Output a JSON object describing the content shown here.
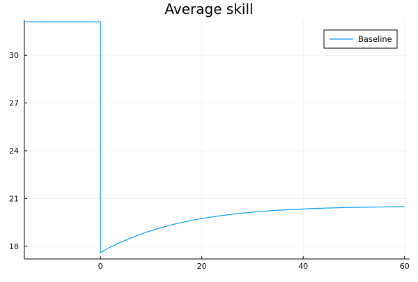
{
  "chart_data": {
    "type": "line",
    "title": "Average skill",
    "xlabel": "",
    "ylabel": "",
    "xlim": [
      -15,
      61
    ],
    "ylim": [
      17.2,
      32.2
    ],
    "x_ticks": [
      0,
      20,
      40,
      60
    ],
    "y_ticks": [
      18,
      21,
      24,
      27,
      30
    ],
    "x_tick_labels": [
      "0",
      "20",
      "40",
      "60"
    ],
    "y_tick_labels": [
      "18",
      "21",
      "24",
      "27",
      "30"
    ],
    "grid": true,
    "legend_position": "top-right",
    "series": [
      {
        "name": "Baseline",
        "color": "#009AFA",
        "points": [
          [
            -15,
            32.1
          ],
          [
            0,
            32.1
          ],
          [
            0,
            17.6
          ],
          [
            2,
            17.95
          ],
          [
            4,
            18.25
          ],
          [
            6,
            18.52
          ],
          [
            8,
            18.76
          ],
          [
            10,
            18.98
          ],
          [
            12,
            19.17
          ],
          [
            14,
            19.34
          ],
          [
            16,
            19.49
          ],
          [
            18,
            19.62
          ],
          [
            20,
            19.74
          ],
          [
            22,
            19.84
          ],
          [
            24,
            19.93
          ],
          [
            26,
            20.01
          ],
          [
            28,
            20.08
          ],
          [
            30,
            20.14
          ],
          [
            32,
            20.19
          ],
          [
            34,
            20.24
          ],
          [
            36,
            20.28
          ],
          [
            38,
            20.31
          ],
          [
            40,
            20.34
          ],
          [
            42,
            20.37
          ],
          [
            44,
            20.39
          ],
          [
            46,
            20.41
          ],
          [
            48,
            20.43
          ],
          [
            50,
            20.44
          ],
          [
            52,
            20.45
          ],
          [
            54,
            20.46
          ],
          [
            56,
            20.47
          ],
          [
            58,
            20.48
          ],
          [
            60,
            20.49
          ]
        ]
      }
    ]
  }
}
